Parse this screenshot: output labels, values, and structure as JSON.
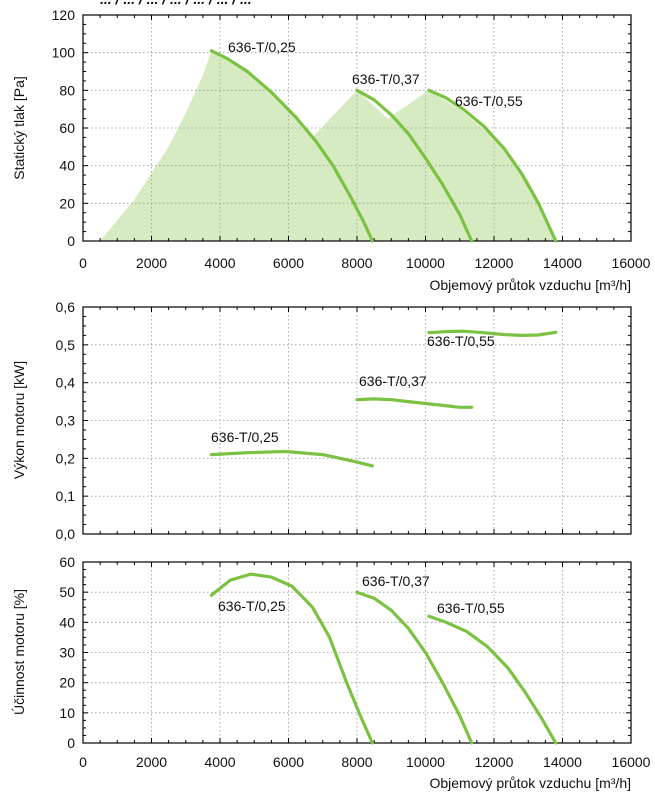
{
  "colors": {
    "curve": "#7cc242",
    "fill": "#d6ebc2",
    "axis": "#000000",
    "grid": "#9a9a9a",
    "header": "#8dc63f"
  },
  "header_partial": "... / ... / ... / ... / ... / ... / ...",
  "chart_data": [
    {
      "type": "line",
      "ylabel": "Statický tlak [Pa]",
      "xlabel": "Objemový průtok vzduchu [m³/h]",
      "xlim": [
        0,
        16000
      ],
      "ylim": [
        0,
        120
      ],
      "x_ticks": [
        0,
        2000,
        4000,
        6000,
        8000,
        10000,
        12000,
        14000,
        16000
      ],
      "y_ticks": [
        0,
        20,
        40,
        60,
        80,
        100,
        120
      ],
      "grid": true,
      "area": [
        [
          500,
          0
        ],
        [
          1500,
          22
        ],
        [
          2500,
          50
        ],
        [
          3000,
          68
        ],
        [
          3500,
          88
        ],
        [
          3750,
          101
        ],
        [
          4800,
          90
        ],
        [
          6000,
          70
        ],
        [
          6700,
          55
        ],
        [
          8000,
          80
        ],
        [
          8900,
          65
        ],
        [
          10100,
          80
        ],
        [
          11000,
          70
        ],
        [
          12000,
          55
        ],
        [
          13000,
          32
        ],
        [
          13800,
          0
        ]
      ],
      "series": [
        {
          "name": "636-T/0,25",
          "x": [
            3750,
            4200,
            4800,
            5500,
            6200,
            6800,
            7300,
            7800,
            8200,
            8450
          ],
          "y": [
            101,
            97,
            90,
            79,
            66,
            53,
            40,
            24,
            10,
            0
          ]
        },
        {
          "name": "636-T/0,37",
          "x": [
            8000,
            8500,
            9000,
            9500,
            10000,
            10500,
            11000,
            11350
          ],
          "y": [
            80,
            75,
            67,
            57,
            44,
            30,
            14,
            0
          ]
        },
        {
          "name": "636-T/0,55",
          "x": [
            10100,
            10600,
            11100,
            11700,
            12300,
            12800,
            13300,
            13800
          ],
          "y": [
            80,
            76,
            70,
            61,
            49,
            36,
            20,
            0
          ]
        }
      ],
      "labels": [
        "636-T/0,25",
        "636-T/0,37",
        "636-T/0,55"
      ]
    },
    {
      "type": "line",
      "ylabel": "Výkon motoru [kW]",
      "xlabel": "",
      "xlim": [
        0,
        16000
      ],
      "ylim": [
        0,
        0.6
      ],
      "y_ticks": [
        0,
        0.1,
        0.2,
        0.3,
        0.4,
        0.5,
        0.6
      ],
      "y_tick_labels": [
        "0,0",
        "0,1",
        "0,2",
        "0,3",
        "0,4",
        "0,5",
        "0,6"
      ],
      "grid": true,
      "series": [
        {
          "name": "636-T/0,25",
          "x": [
            3750,
            4800,
            5900,
            7000,
            7500,
            8000,
            8450
          ],
          "y": [
            0.21,
            0.215,
            0.218,
            0.21,
            0.2,
            0.19,
            0.18
          ]
        },
        {
          "name": "636-T/0,37",
          "x": [
            8000,
            8500,
            9000,
            9500,
            10000,
            10500,
            11000,
            11350
          ],
          "y": [
            0.355,
            0.357,
            0.355,
            0.35,
            0.345,
            0.34,
            0.335,
            0.335
          ]
        },
        {
          "name": "636-T/0,55",
          "x": [
            10100,
            10600,
            11100,
            11700,
            12300,
            12800,
            13300,
            13800
          ],
          "y": [
            0.532,
            0.535,
            0.536,
            0.532,
            0.527,
            0.525,
            0.526,
            0.533
          ]
        }
      ],
      "labels": [
        "636-T/0,25",
        "636-T/0,37",
        "636-T/0,55"
      ]
    },
    {
      "type": "line",
      "ylabel": "Účinnost motoru [%]",
      "xlabel": "Objemový průtok vzduchu [m³/h]",
      "xlim": [
        0,
        16000
      ],
      "ylim": [
        0,
        60
      ],
      "x_ticks": [
        0,
        2000,
        4000,
        6000,
        8000,
        10000,
        12000,
        14000,
        16000
      ],
      "y_ticks": [
        0,
        10,
        20,
        30,
        40,
        50,
        60
      ],
      "grid": true,
      "series": [
        {
          "name": "636-T/0,25",
          "x": [
            3750,
            4300,
            4900,
            5500,
            6100,
            6700,
            7200,
            7700,
            8100,
            8450
          ],
          "y": [
            49,
            54,
            56,
            55,
            52,
            45,
            35,
            20,
            9,
            0
          ]
        },
        {
          "name": "636-T/0,37",
          "x": [
            8000,
            8500,
            9000,
            9500,
            10000,
            10500,
            11000,
            11350
          ],
          "y": [
            50,
            48,
            44,
            38,
            30,
            20,
            9,
            0
          ]
        },
        {
          "name": "636-T/0,55",
          "x": [
            10100,
            10600,
            11200,
            11800,
            12400,
            12900,
            13400,
            13800
          ],
          "y": [
            42,
            40,
            37,
            32,
            25,
            17,
            8,
            0
          ]
        }
      ],
      "labels": [
        "636-T/0,25",
        "636-T/0,37",
        "636-T/0,55"
      ]
    }
  ]
}
